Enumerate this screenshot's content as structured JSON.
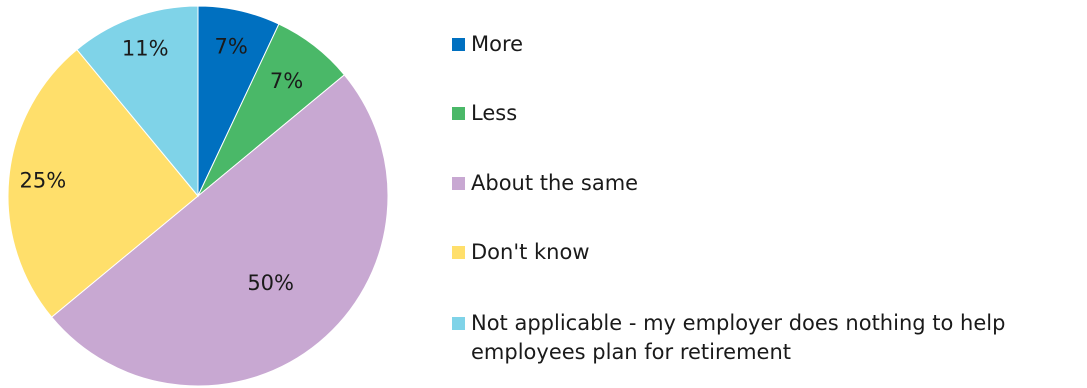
{
  "chart_data": {
    "type": "pie",
    "title": "",
    "start_angle_deg": 0,
    "direction": "clockwise",
    "slices": [
      {
        "label": "More",
        "value": 7,
        "display": "7%",
        "color": "#0070c0"
      },
      {
        "label": "Less",
        "value": 7,
        "display": "7%",
        "color": "#4ab868"
      },
      {
        "label": "About the same",
        "value": 50,
        "display": "50%",
        "color": "#c8a8d2"
      },
      {
        "label": "Don't know",
        "value": 25,
        "display": "25%",
        "color": "#ffdf6b"
      },
      {
        "label": "Not applicable - my employer does nothing to help employees plan for retirement",
        "value": 11,
        "display": "11%",
        "color": "#7fd3e8"
      }
    ],
    "legend_position": "right"
  }
}
